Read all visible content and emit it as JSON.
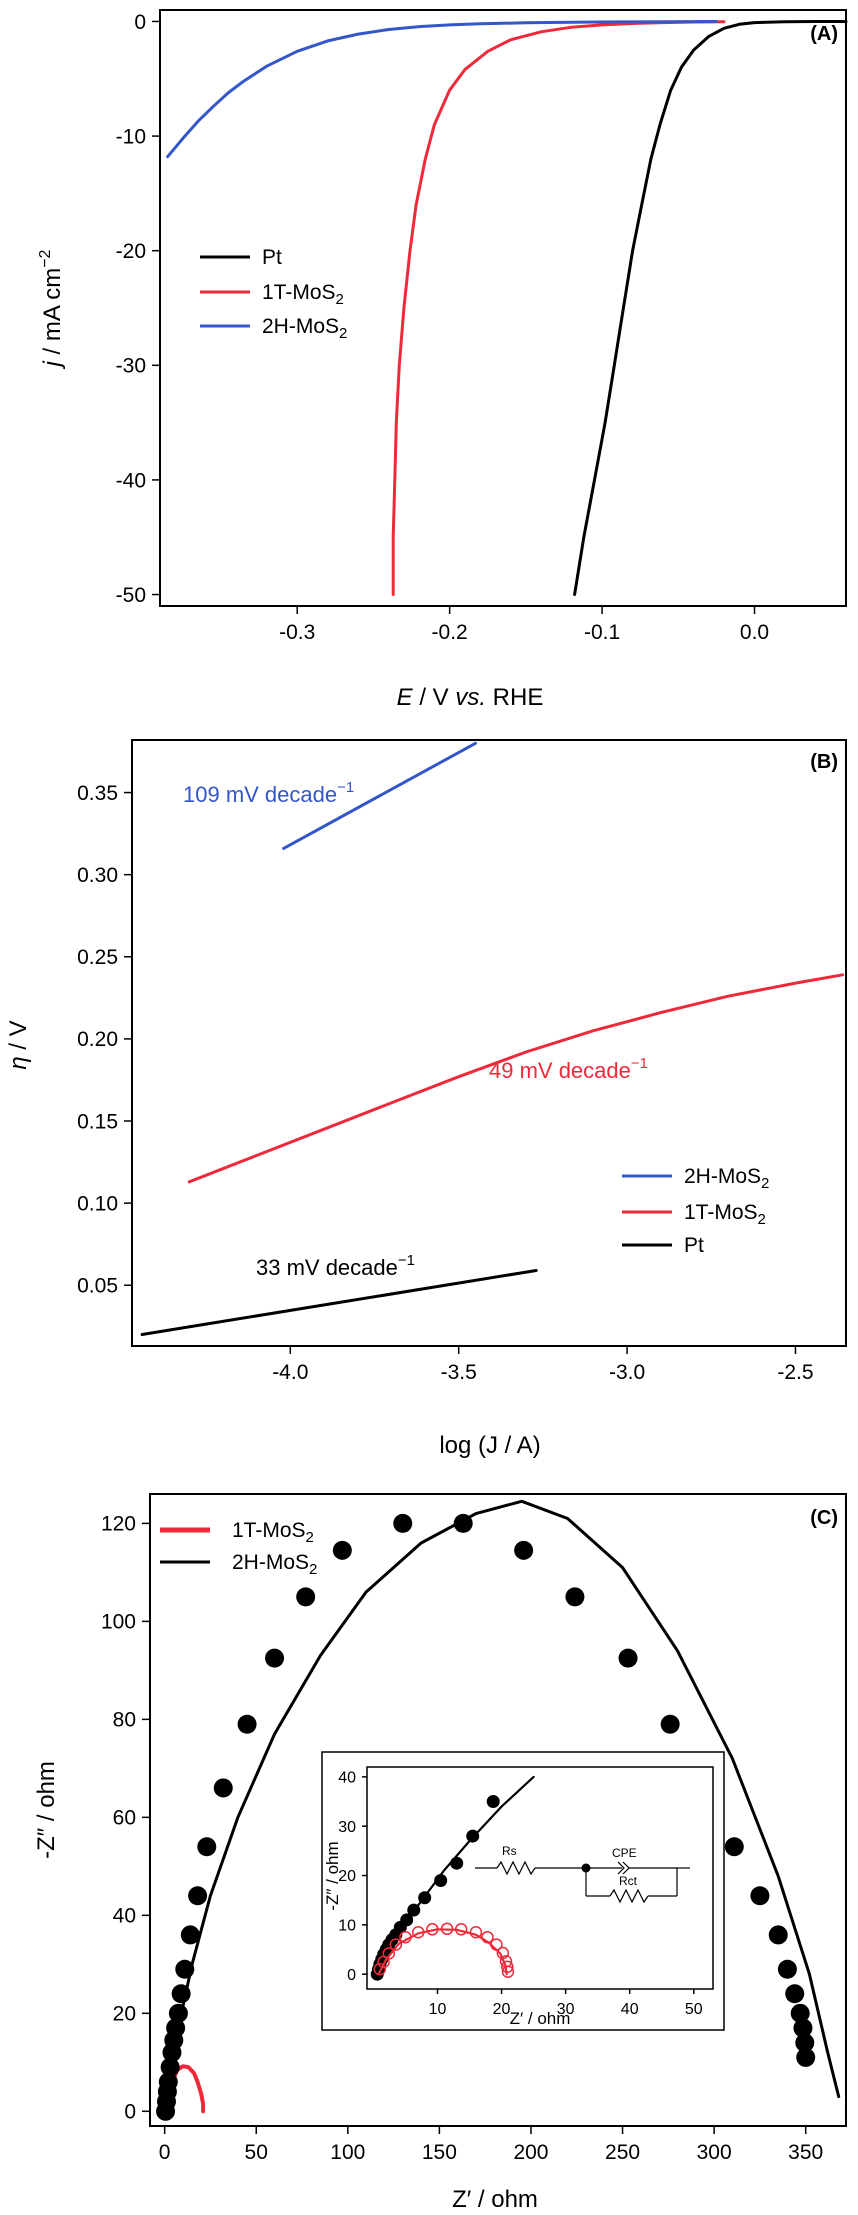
{
  "chart_data": [
    {
      "panel_label": "(A)",
      "type": "line",
      "xlabel": {
        "var": "E",
        "unit": " / V ",
        "vs": "vs.",
        "ref": " RHE"
      },
      "ylabel": {
        "var": "j",
        "unit": " / mA cm",
        "exp": "−2"
      },
      "xlim": [
        -0.39,
        0.06
      ],
      "ylim": [
        -51,
        1
      ],
      "xticks": [
        -0.3,
        -0.2,
        -0.1,
        0.0
      ],
      "xtick_labels": [
        "-0.3",
        "-0.2",
        "-0.1",
        "0.0"
      ],
      "yticks": [
        0,
        -10,
        -20,
        -30,
        -40,
        -50
      ],
      "ytick_labels": [
        "0",
        "-10",
        "-20",
        "-30",
        "-40",
        "-50"
      ],
      "legend_position": "middle-left",
      "series": [
        {
          "name": "Pt",
          "label_main": "Pt",
          "label_sub": "",
          "color": "#000000",
          "x": [
            -0.118,
            -0.112,
            -0.105,
            -0.098,
            -0.092,
            -0.086,
            -0.08,
            -0.074,
            -0.068,
            -0.062,
            -0.055,
            -0.048,
            -0.04,
            -0.03,
            -0.02,
            -0.01,
            0.0,
            0.02,
            0.04,
            0.06
          ],
          "y": [
            -50,
            -45,
            -40,
            -35,
            -30,
            -25,
            -20,
            -16,
            -12,
            -9,
            -6,
            -4,
            -2.5,
            -1.3,
            -0.6,
            -0.25,
            -0.1,
            -0.03,
            0.0,
            0.0
          ]
        },
        {
          "name": "1T-MoS2",
          "label_main": "1T-MoS",
          "label_sub": "2",
          "color": "#ee2a3a",
          "x": [
            -0.237,
            -0.237,
            -0.236,
            -0.235,
            -0.233,
            -0.23,
            -0.226,
            -0.222,
            -0.216,
            -0.21,
            -0.2,
            -0.19,
            -0.175,
            -0.16,
            -0.14,
            -0.12,
            -0.1,
            -0.08,
            -0.06,
            -0.04,
            -0.02
          ],
          "y": [
            -50,
            -45,
            -40,
            -35,
            -30,
            -25,
            -20,
            -16,
            -12,
            -9,
            -6,
            -4.2,
            -2.6,
            -1.6,
            -0.9,
            -0.5,
            -0.3,
            -0.18,
            -0.1,
            -0.05,
            -0.02
          ]
        },
        {
          "name": "2H-MoS2",
          "label_main": "2H-MoS",
          "label_sub": "2",
          "color": "#3356c9",
          "x": [
            -0.385,
            -0.375,
            -0.365,
            -0.355,
            -0.345,
            -0.335,
            -0.32,
            -0.3,
            -0.28,
            -0.26,
            -0.24,
            -0.22,
            -0.2,
            -0.18,
            -0.15,
            -0.12,
            -0.09,
            -0.06,
            -0.025
          ],
          "y": [
            -11.8,
            -10.2,
            -8.7,
            -7.4,
            -6.2,
            -5.2,
            -3.9,
            -2.6,
            -1.7,
            -1.1,
            -0.7,
            -0.45,
            -0.3,
            -0.2,
            -0.12,
            -0.07,
            -0.04,
            -0.02,
            0.0
          ]
        }
      ]
    },
    {
      "panel_label": "(B)",
      "type": "line",
      "xlabel": {
        "text": "log (J / A)"
      },
      "ylabel": {
        "var": "η",
        "unit": " / V"
      },
      "xlim": [
        -4.47,
        -2.35
      ],
      "ylim": [
        0.013,
        0.382
      ],
      "xticks": [
        -4.0,
        -3.5,
        -3.0,
        -2.5
      ],
      "xtick_labels": [
        "-4.0",
        "-3.5",
        "-3.0",
        "-2.5"
      ],
      "yticks": [
        0.05,
        0.1,
        0.15,
        0.2,
        0.25,
        0.3,
        0.35
      ],
      "ytick_labels": [
        "0.05",
        "0.10",
        "0.15",
        "0.20",
        "0.25",
        "0.30",
        "0.35"
      ],
      "legend_position": "lower-right",
      "annotations": [
        {
          "text": "109 mV decade",
          "exp": "−1",
          "color": "#3356c9"
        },
        {
          "text": "49 mV decade",
          "exp": "−1",
          "color": "#ee2a3a"
        },
        {
          "text": "33 mV decade",
          "exp": "−1",
          "color": "#000000"
        }
      ],
      "series": [
        {
          "name": "2H-MoS2",
          "label_main": "2H-MoS",
          "label_sub": "2",
          "color": "#3356c9",
          "x": [
            -4.02,
            -3.45
          ],
          "y": [
            0.316,
            0.38
          ]
        },
        {
          "name": "1T-MoS2",
          "label_main": "1T-MoS",
          "label_sub": "2",
          "color": "#ee2a3a",
          "x": [
            -4.3,
            -4.1,
            -3.9,
            -3.7,
            -3.5,
            -3.3,
            -3.1,
            -2.9,
            -2.7,
            -2.5,
            -2.36
          ],
          "y": [
            0.113,
            0.129,
            0.145,
            0.161,
            0.177,
            0.192,
            0.205,
            0.216,
            0.226,
            0.234,
            0.239
          ]
        },
        {
          "name": "Pt",
          "label_main": "Pt",
          "label_sub": "",
          "color": "#000000",
          "x": [
            -4.44,
            -3.27
          ],
          "y": [
            0.02,
            0.059
          ]
        }
      ]
    },
    {
      "panel_label": "(C)",
      "type": "scatter",
      "xlabel": {
        "text": "Z′ / ohm"
      },
      "ylabel": {
        "text": "-Z″ / ohm"
      },
      "xlim": [
        -8,
        372
      ],
      "ylim": [
        -3,
        126
      ],
      "xticks": [
        0,
        50,
        100,
        150,
        200,
        250,
        300,
        350
      ],
      "xtick_labels": [
        "0",
        "50",
        "100",
        "150",
        "200",
        "250",
        "300",
        "350"
      ],
      "yticks": [
        0,
        20,
        40,
        60,
        80,
        100,
        120
      ],
      "ytick_labels": [
        "0",
        "20",
        "40",
        "60",
        "80",
        "100",
        "120"
      ],
      "legend_position": "top-left",
      "series": [
        {
          "name": "1T-MoS2",
          "label_main": "1T-MoS",
          "label_sub": "2",
          "color": "#ee2a3a",
          "kind": "line",
          "x": [
            0.5,
            2,
            4,
            7,
            10,
            13,
            16,
            18,
            20,
            21,
            21
          ],
          "y": [
            0,
            3,
            6,
            8.5,
            9.2,
            9,
            7.8,
            6,
            3.5,
            1.5,
            0
          ]
        },
        {
          "name": "2H-MoS2 fit",
          "label_main": "2H-MoS",
          "label_sub": "2",
          "color": "#000000",
          "kind": "line",
          "x": [
            0,
            3,
            8,
            15,
            25,
            40,
            60,
            85,
            110,
            140,
            170,
            195,
            220,
            250,
            280,
            310,
            335,
            352,
            362,
            368
          ],
          "y": [
            0,
            8,
            18,
            30,
            44,
            60,
            77,
            93,
            106,
            116,
            122,
            124.5,
            121,
            111,
            94,
            72,
            48,
            28,
            12,
            3
          ]
        },
        {
          "name": "2H-MoS2 data",
          "color": "#000000",
          "kind": "marker",
          "x": [
            0.5,
            1,
            1.5,
            2,
            3,
            4,
            5,
            6,
            7.5,
            9,
            11,
            14,
            18,
            23,
            32,
            45,
            60,
            77,
            97,
            130,
            163,
            196,
            224,
            253,
            276,
            296,
            311,
            325,
            335,
            340,
            344,
            347,
            348.5,
            349.5,
            350
          ],
          "y": [
            0,
            2,
            4,
            6,
            9,
            12,
            14.5,
            17,
            20,
            24,
            29,
            36,
            44,
            54,
            66,
            79,
            92.5,
            105,
            114.5,
            120,
            120,
            114.5,
            105,
            92.5,
            79,
            66,
            54,
            44,
            36,
            29,
            24,
            20,
            17,
            14,
            11
          ]
        }
      ],
      "inset": {
        "xlabel": "Z′ / ohm",
        "ylabel": "-Z″ / ohm",
        "xlim": [
          -1,
          53
        ],
        "ylim": [
          -3,
          42
        ],
        "xticks": [
          10,
          20,
          30,
          40,
          50
        ],
        "xtick_labels": [
          "10",
          "20",
          "30",
          "40",
          "50"
        ],
        "yticks": [
          0,
          10,
          20,
          30,
          40
        ],
        "ytick_labels": [
          "0",
          "10",
          "20",
          "30",
          "40"
        ],
        "circuit": {
          "rs": "Rs",
          "cpe": "CPE",
          "rct": "Rct"
        },
        "series": [
          {
            "name": "2H-MoS2 fit",
            "color": "#000000",
            "kind": "line",
            "x": [
              0.5,
              2,
              4,
              7,
              11,
              15,
              20,
              25
            ],
            "y": [
              0,
              3.5,
              8,
              14,
              21,
              27,
              34,
              40
            ]
          },
          {
            "name": "2H-MoS2 data",
            "color": "#000000",
            "kind": "marker",
            "x": [
              0.6,
              0.8,
              1,
              1.3,
              1.6,
              2,
              2.4,
              2.9,
              3.5,
              4.2,
              5.2,
              6.3,
              8,
              10.5,
              13,
              15.5,
              18.7
            ],
            "y": [
              0,
              1,
              2,
              3,
              4,
              5,
              6,
              7,
              8,
              9.5,
              11,
              13,
              15.5,
              19,
              22.5,
              28,
              35
            ]
          },
          {
            "name": "1T-MoS2 fit",
            "color": "#ee2a3a",
            "kind": "line",
            "x": [
              0.8,
              2,
              4,
              7,
              10,
              13,
              16,
              18,
              19.8,
              20.6,
              20.8
            ],
            "y": [
              0,
              3,
              6.2,
              8.3,
              9.1,
              9,
              8,
              6.4,
              4.2,
              1.8,
              0
            ]
          },
          {
            "name": "1T-MoS2 data",
            "color": "#ee2a3a",
            "kind": "open-marker",
            "x": [
              1,
              1.6,
              2.4,
              3.5,
              5,
              7,
              9.2,
              11.5,
              13.7,
              16,
              17.8,
              19.2,
              20.2,
              20.7,
              20.9,
              21
            ],
            "y": [
              1,
              2.5,
              4.2,
              6,
              7.5,
              8.5,
              9.1,
              9.2,
              9.1,
              8.5,
              7.5,
              6,
              4.3,
              2.6,
              1.5,
              0.5
            ]
          }
        ]
      }
    }
  ]
}
